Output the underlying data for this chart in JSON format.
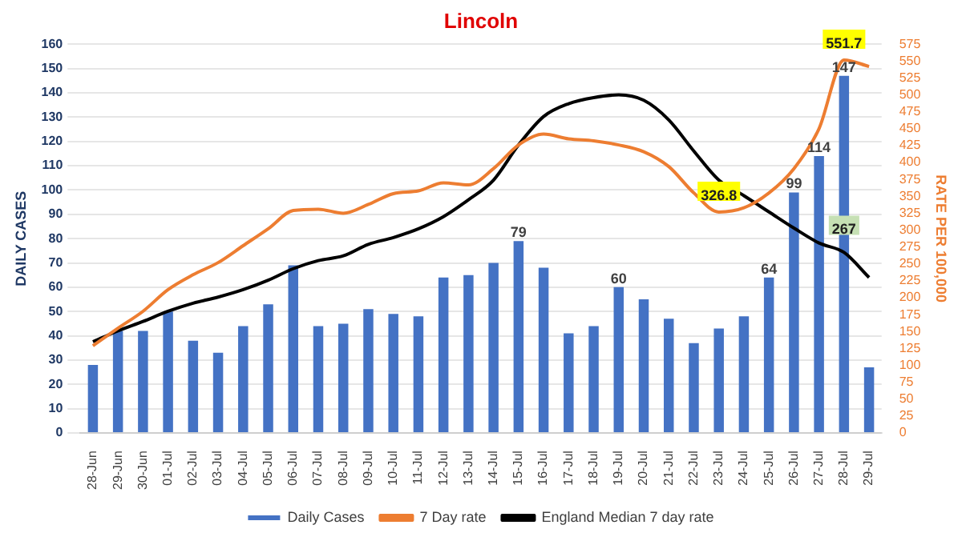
{
  "chart_data": {
    "type": "bar",
    "title": "Lincoln",
    "ylabel": "DAILY CASES",
    "y2label": "RATE PER 100,000",
    "categories": [
      "28-Jun",
      "29-Jun",
      "30-Jun",
      "01-Jul",
      "02-Jul",
      "03-Jul",
      "04-Jul",
      "05-Jul",
      "06-Jul",
      "07-Jul",
      "08-Jul",
      "09-Jul",
      "10-Jul",
      "11-Jul",
      "12-Jul",
      "13-Jul",
      "14-Jul",
      "15-Jul",
      "16-Jul",
      "17-Jul",
      "18-Jul",
      "19-Jul",
      "20-Jul",
      "21-Jul",
      "22-Jul",
      "23-Jul",
      "24-Jul",
      "25-Jul",
      "26-Jul",
      "27-Jul",
      "28-Jul",
      "29-Jul"
    ],
    "series": [
      {
        "name": "Daily Cases",
        "color": "#4472c4",
        "values": [
          28,
          42,
          42,
          50,
          38,
          33,
          44,
          53,
          69,
          44,
          45,
          51,
          49,
          48,
          64,
          65,
          70,
          79,
          68,
          41,
          44,
          60,
          55,
          47,
          37,
          43,
          48,
          64,
          99,
          114,
          147,
          27
        ],
        "value_labels": [
          null,
          null,
          null,
          null,
          null,
          null,
          null,
          null,
          null,
          null,
          null,
          null,
          null,
          null,
          null,
          null,
          null,
          "79",
          null,
          null,
          null,
          "60",
          null,
          null,
          null,
          null,
          null,
          "64",
          "99",
          "114",
          "147",
          null
        ]
      },
      {
        "name": "7 Day rate",
        "type": "line",
        "axis": "y2",
        "color": "#ed7d31",
        "values": [
          129,
          155,
          180,
          212,
          234,
          252,
          277,
          302,
          329,
          331,
          325,
          338,
          354,
          358,
          370,
          367,
          391,
          426,
          442,
          435,
          432,
          426,
          416,
          394,
          355,
          326.8,
          333,
          355,
          391,
          450,
          551.7,
          542
        ],
        "value_labels": [
          null,
          null,
          null,
          null,
          null,
          null,
          null,
          null,
          null,
          null,
          null,
          null,
          null,
          null,
          null,
          null,
          null,
          null,
          null,
          null,
          null,
          null,
          null,
          null,
          null,
          "326.8",
          null,
          null,
          null,
          null,
          "551.7",
          null
        ]
      },
      {
        "name": "England Median 7 day rate",
        "type": "line",
        "axis": "y2",
        "color": "#000000",
        "values": [
          135,
          151,
          165,
          180,
          192,
          201,
          212,
          226,
          243,
          255,
          262,
          279,
          289,
          302,
          320,
          345,
          374,
          426,
          468,
          487,
          496,
          500,
          492,
          463,
          417,
          374,
          351,
          327,
          303,
          281,
          267,
          230
        ],
        "value_labels": [
          null,
          null,
          null,
          null,
          null,
          null,
          null,
          null,
          null,
          null,
          null,
          null,
          null,
          null,
          null,
          null,
          null,
          null,
          null,
          null,
          null,
          null,
          null,
          null,
          null,
          null,
          null,
          null,
          null,
          null,
          "267",
          null
        ]
      }
    ],
    "ylim": [
      0,
      160
    ],
    "yticks": [
      0,
      10,
      20,
      30,
      40,
      50,
      60,
      70,
      80,
      90,
      100,
      110,
      120,
      130,
      140,
      150,
      160
    ],
    "y2lim": [
      0,
      575
    ],
    "y2ticks": [
      0,
      25,
      50,
      75,
      100,
      125,
      150,
      175,
      200,
      225,
      250,
      275,
      300,
      325,
      350,
      375,
      400,
      425,
      450,
      475,
      500,
      525,
      550,
      575
    ],
    "grid": "y",
    "legend": "bottom",
    "marker": "none"
  }
}
